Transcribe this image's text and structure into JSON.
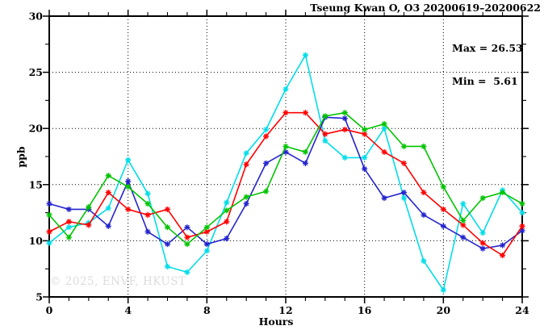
{
  "title": "Tseung Kwan O, O3 20200619–20200622",
  "annotation": {
    "max_label": "Max = 26.53",
    "min_label": "Min =  5.61"
  },
  "watermark": "© 2025, ENVF, HKUST",
  "chart_data": {
    "type": "line",
    "title": "Tseung Kwan O, O3 20200619–20200622",
    "xlabel": "Hours",
    "ylabel": "ppb",
    "xlim": [
      0,
      24
    ],
    "ylim": [
      5,
      30
    ],
    "x_ticks": [
      0,
      4,
      8,
      12,
      16,
      20,
      24
    ],
    "y_ticks": [
      5,
      10,
      15,
      20,
      25,
      30
    ],
    "x_minor_step": 1,
    "y_minor_step": 2.5,
    "grid_x": [
      4,
      8,
      12,
      16,
      20
    ],
    "grid_y": [
      10,
      15,
      20,
      25
    ],
    "grid": true,
    "legend": "none",
    "max_value": 26.53,
    "min_value": 5.61,
    "x": [
      0,
      1,
      2,
      3,
      4,
      5,
      6,
      7,
      8,
      9,
      10,
      11,
      12,
      13,
      14,
      15,
      16,
      17,
      18,
      19,
      20,
      21,
      22,
      23,
      24
    ],
    "series": [
      {
        "name": "cyan",
        "color": "#00dde8",
        "values": [
          9.8,
          11.2,
          11.6,
          12.9,
          17.2,
          14.2,
          7.7,
          7.2,
          9.1,
          13.4,
          17.8,
          19.9,
          23.5,
          26.53,
          18.9,
          17.4,
          17.4,
          20.0,
          13.8,
          8.2,
          5.61,
          13.3,
          10.7,
          14.5,
          12.5
        ]
      },
      {
        "name": "blue",
        "color": "#2525cd",
        "values": [
          13.3,
          12.8,
          12.8,
          11.3,
          15.3,
          10.8,
          9.7,
          11.2,
          9.7,
          10.2,
          13.3,
          16.9,
          17.9,
          16.9,
          21.0,
          20.9,
          16.4,
          13.8,
          14.3,
          12.3,
          11.3,
          10.3,
          9.3,
          9.6,
          10.9
        ]
      },
      {
        "name": "red",
        "color": "#ff0000",
        "values": [
          10.8,
          11.7,
          11.4,
          14.3,
          12.8,
          12.3,
          12.8,
          10.3,
          10.8,
          11.7,
          16.8,
          19.3,
          21.4,
          21.4,
          19.5,
          19.9,
          19.5,
          17.9,
          16.9,
          14.3,
          12.8,
          11.4,
          9.8,
          8.7,
          11.3
        ]
      },
      {
        "name": "green",
        "color": "#00c400",
        "values": [
          12.3,
          10.3,
          13.0,
          15.8,
          14.8,
          13.3,
          11.2,
          9.7,
          11.2,
          12.7,
          13.9,
          14.4,
          18.4,
          17.9,
          21.1,
          21.4,
          19.9,
          20.4,
          18.4,
          18.4,
          14.8,
          11.8,
          13.8,
          14.3,
          13.3
        ]
      }
    ]
  },
  "colors": {
    "frame": "#000000",
    "grid": "#000000",
    "watermark_text": "#dcdcdc",
    "background": "#ffffff"
  }
}
